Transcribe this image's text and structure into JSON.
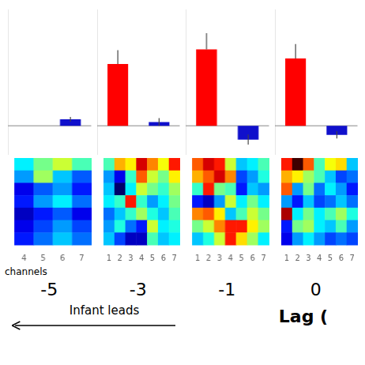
{
  "chart_data": [
    {
      "type": "bar",
      "categories": [
        null,
        null
      ],
      "values": [
        0.0,
        0.018
      ],
      "colors": [
        "#FF0000",
        "#1010CC"
      ],
      "error_low": [
        0,
        0.0065
      ],
      "error_high": [
        0.0,
        0.0065
      ],
      "ylim": [
        -0.08,
        0.32
      ],
      "tick_labels": false,
      "grid": false
    },
    {
      "type": "bar",
      "categories": [
        null,
        null
      ],
      "values": [
        0.17,
        0.01
      ],
      "colors": [
        "#FF0000",
        "#1010CC"
      ],
      "error_low": [
        0,
        0.01
      ],
      "error_high": [
        0.038,
        0.011
      ],
      "ylim": [
        -0.08,
        0.32
      ],
      "tick_labels": false,
      "grid": false
    },
    {
      "type": "bar",
      "categories": [
        null,
        null
      ],
      "values": [
        0.21,
        -0.038
      ],
      "colors": [
        "#FF0000",
        "#1010CC"
      ],
      "error_low": [
        0,
        0.014
      ],
      "error_high": [
        0.045,
        0.014
      ],
      "ylim": [
        -0.08,
        0.32
      ],
      "tick_labels": false,
      "grid": false
    },
    {
      "type": "bar",
      "categories": [
        null,
        null
      ],
      "values": [
        0.185,
        -0.025
      ],
      "colors": [
        "#FF0000",
        "#1010CC"
      ],
      "error_low": [
        0,
        0.01
      ],
      "error_high": [
        0.04,
        0.01
      ],
      "ylim": [
        -0.08,
        0.32
      ],
      "tick_labels": false,
      "grid": false
    },
    {
      "type": "heatmap",
      "title": "-5",
      "xlabel": "channels",
      "categories": [
        "4",
        "5",
        "6",
        "7"
      ],
      "values": [
        [
          0.32,
          0.38,
          0.42,
          0.36
        ],
        [
          0.28,
          0.4,
          0.3,
          0.25
        ],
        [
          0.2,
          0.25,
          0.28,
          0.22
        ],
        [
          0.22,
          0.28,
          0.32,
          0.26
        ],
        [
          0.18,
          0.22,
          0.25,
          0.2
        ],
        [
          0.2,
          0.24,
          0.28,
          0.24
        ],
        [
          0.22,
          0.26,
          0.3,
          0.26
        ]
      ],
      "color_range": [
        0.15,
        0.62
      ],
      "tick_labels": "x",
      "grid": false
    },
    {
      "type": "heatmap",
      "title": "-3",
      "categories": [
        "1",
        "2",
        "3",
        "4",
        "5",
        "6",
        "7"
      ],
      "values": [
        [
          0.36,
          0.48,
          0.45,
          0.58,
          0.5,
          0.44,
          0.55
        ],
        [
          0.28,
          0.2,
          0.35,
          0.52,
          0.42,
          0.38,
          0.45
        ],
        [
          0.3,
          0.14,
          0.32,
          0.42,
          0.38,
          0.35,
          0.4
        ],
        [
          0.32,
          0.35,
          0.55,
          0.35,
          0.28,
          0.32,
          0.38
        ],
        [
          0.26,
          0.3,
          0.35,
          0.4,
          0.34,
          0.3,
          0.36
        ],
        [
          0.28,
          0.34,
          0.26,
          0.22,
          0.42,
          0.32,
          0.34
        ],
        [
          0.3,
          0.24,
          0.18,
          0.18,
          0.36,
          0.3,
          0.32
        ]
      ],
      "color_range": [
        0.15,
        0.62
      ],
      "tick_labels": "x",
      "grid": false
    },
    {
      "type": "heatmap",
      "title": "-1",
      "categories": [
        "1",
        "2",
        "3",
        "4",
        "5",
        "6",
        "7"
      ],
      "values": [
        [
          0.52,
          0.58,
          0.55,
          0.42,
          0.3,
          0.32,
          0.36
        ],
        [
          0.48,
          0.52,
          0.58,
          0.5,
          0.24,
          0.28,
          0.34
        ],
        [
          0.35,
          0.55,
          0.38,
          0.36,
          0.22,
          0.3,
          0.28
        ],
        [
          0.22,
          0.18,
          0.28,
          0.42,
          0.32,
          0.38,
          0.32
        ],
        [
          0.5,
          0.52,
          0.45,
          0.3,
          0.36,
          0.42,
          0.38
        ],
        [
          0.38,
          0.42,
          0.5,
          0.55,
          0.55,
          0.45,
          0.4
        ],
        [
          0.3,
          0.34,
          0.42,
          0.55,
          0.46,
          0.4,
          0.32
        ]
      ],
      "color_range": [
        0.15,
        0.62
      ],
      "tick_labels": "x",
      "grid": false
    },
    {
      "type": "heatmap",
      "title": "0",
      "categories": [
        "1",
        "2",
        "3",
        "4",
        "5",
        "6",
        "7"
      ],
      "values": [
        [
          0.55,
          0.65,
          0.52,
          0.36,
          0.44,
          0.46,
          0.3
        ],
        [
          0.48,
          0.45,
          0.4,
          0.36,
          0.3,
          0.24,
          0.26
        ],
        [
          0.52,
          0.28,
          0.38,
          0.26,
          0.32,
          0.28,
          0.22
        ],
        [
          0.28,
          0.22,
          0.3,
          0.24,
          0.26,
          0.3,
          0.26
        ],
        [
          0.6,
          0.32,
          0.38,
          0.32,
          0.36,
          0.4,
          0.34
        ],
        [
          0.22,
          0.38,
          0.4,
          0.32,
          0.3,
          0.36,
          0.28
        ],
        [
          0.2,
          0.28,
          0.32,
          0.28,
          0.24,
          0.26,
          0.24
        ]
      ],
      "color_range": [
        0.15,
        0.62
      ],
      "tick_labels": "x",
      "grid": false,
      "annotations": [
        "Infant leads",
        "Lag ("
      ]
    }
  ]
}
